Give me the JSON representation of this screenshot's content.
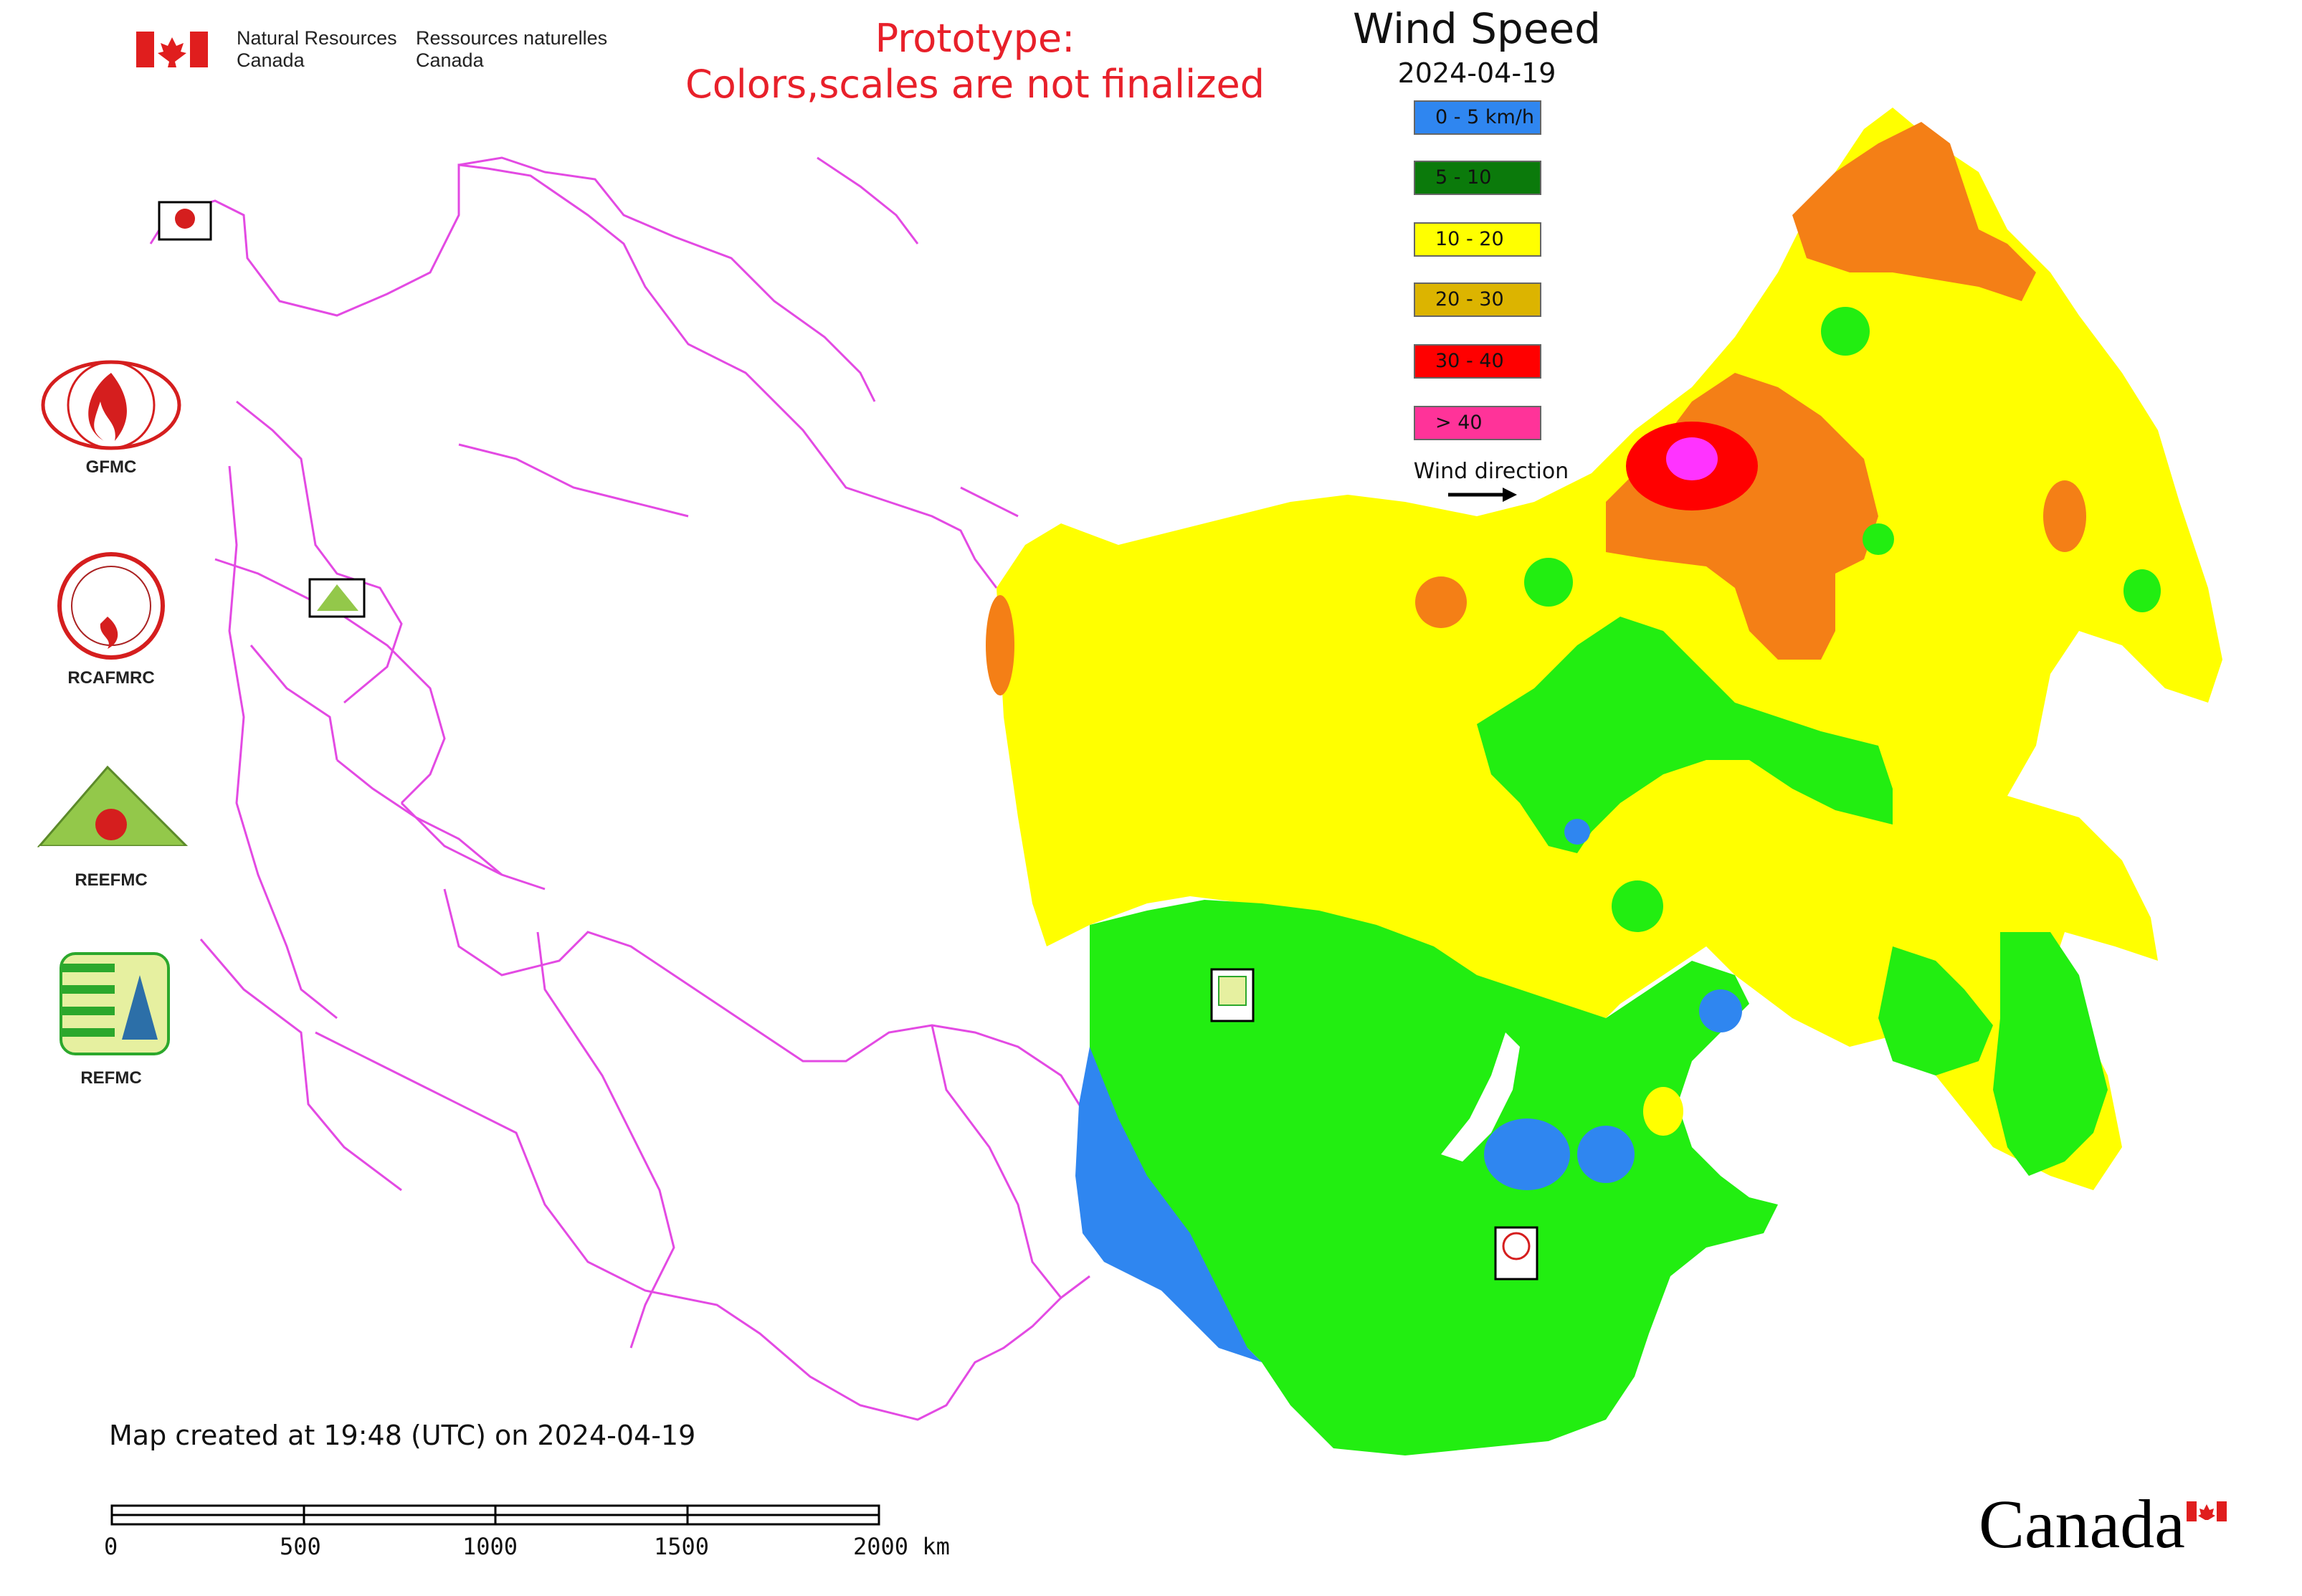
{
  "header": {
    "org_en_line1": "Natural Resources",
    "org_en_line2": "Canada",
    "org_fr_line1": "Ressources naturelles",
    "org_fr_line2": "Canada"
  },
  "notice": {
    "line1": "Prototype:",
    "line2": "Colors,scales are not finalized"
  },
  "title": "Wind Speed",
  "date": "2024-04-19",
  "legend": {
    "items": [
      {
        "label": "0 - 5 km/h",
        "color": "#2f86f0"
      },
      {
        "label": "5 - 10",
        "color": "#0b7a0b"
      },
      {
        "label": "10 - 20",
        "color": "#ffff00"
      },
      {
        "label": "20 - 30",
        "color": "#dcb400"
      },
      {
        "label": "30 - 40",
        "color": "#ff0000"
      },
      {
        "label": "> 40",
        "color": "#ff3399"
      }
    ],
    "wind_direction_label": "Wind direction"
  },
  "map_colors": {
    "blue": "#2f86f0",
    "green": "#22ee11",
    "yellow": "#ffff00",
    "orange": "#f47f16",
    "red": "#ff0000",
    "magenta": "#ff33ff",
    "boundary": "#e34ae3"
  },
  "organizations": [
    {
      "name": "GFMC"
    },
    {
      "name": "RCAFMRC"
    },
    {
      "name": "REEFMC"
    },
    {
      "name": "REFMC"
    }
  ],
  "footer": {
    "map_created": "Map created at 19:48 (UTC) on 2024-04-19",
    "scale_labels": [
      "0",
      "500",
      "1000",
      "1500",
      "2000 km"
    ],
    "wordmark": "Canada"
  }
}
